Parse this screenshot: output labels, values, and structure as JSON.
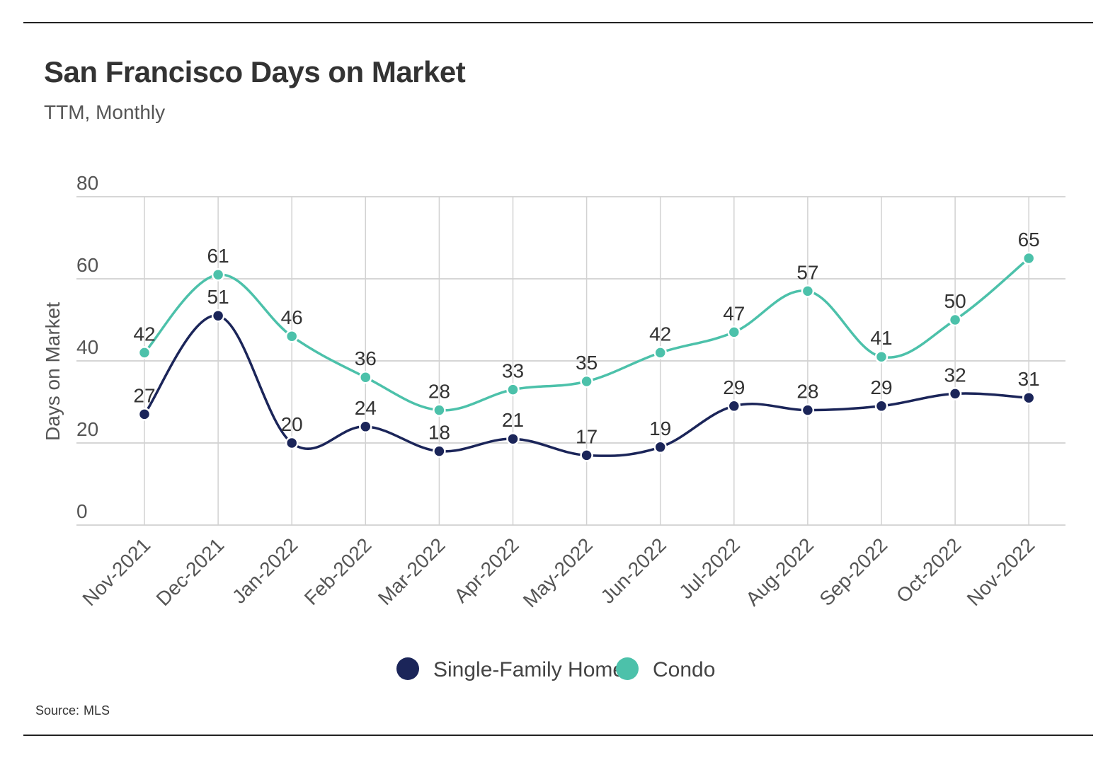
{
  "header": {
    "title": "San Francisco Days on Market",
    "subtitle": "TTM, Monthly"
  },
  "footer": {
    "source_label": "Source:",
    "source_value": "MLS"
  },
  "chart_data": {
    "type": "line",
    "title": "San Francisco Days on Market",
    "subtitle": "TTM, Monthly",
    "xlabel": "",
    "ylabel": "Days on Market",
    "ylim": [
      0,
      80
    ],
    "yticks": [
      0,
      20,
      40,
      60,
      80
    ],
    "grid": true,
    "legend_position": "bottom-center",
    "categories": [
      "Nov-2021",
      "Dec-2021",
      "Jan-2022",
      "Feb-2022",
      "Mar-2022",
      "Apr-2022",
      "May-2022",
      "Jun-2022",
      "Jul-2022",
      "Aug-2022",
      "Sep-2022",
      "Oct-2022",
      "Nov-2022"
    ],
    "series": [
      {
        "name": "Single-Family Home",
        "color": "#1b2559",
        "values": [
          27,
          51,
          20,
          24,
          18,
          21,
          17,
          19,
          29,
          28,
          29,
          32,
          31
        ]
      },
      {
        "name": "Condo",
        "color": "#4cc1aa",
        "values": [
          42,
          61,
          46,
          36,
          28,
          33,
          35,
          42,
          47,
          57,
          41,
          50,
          65
        ]
      }
    ]
  }
}
